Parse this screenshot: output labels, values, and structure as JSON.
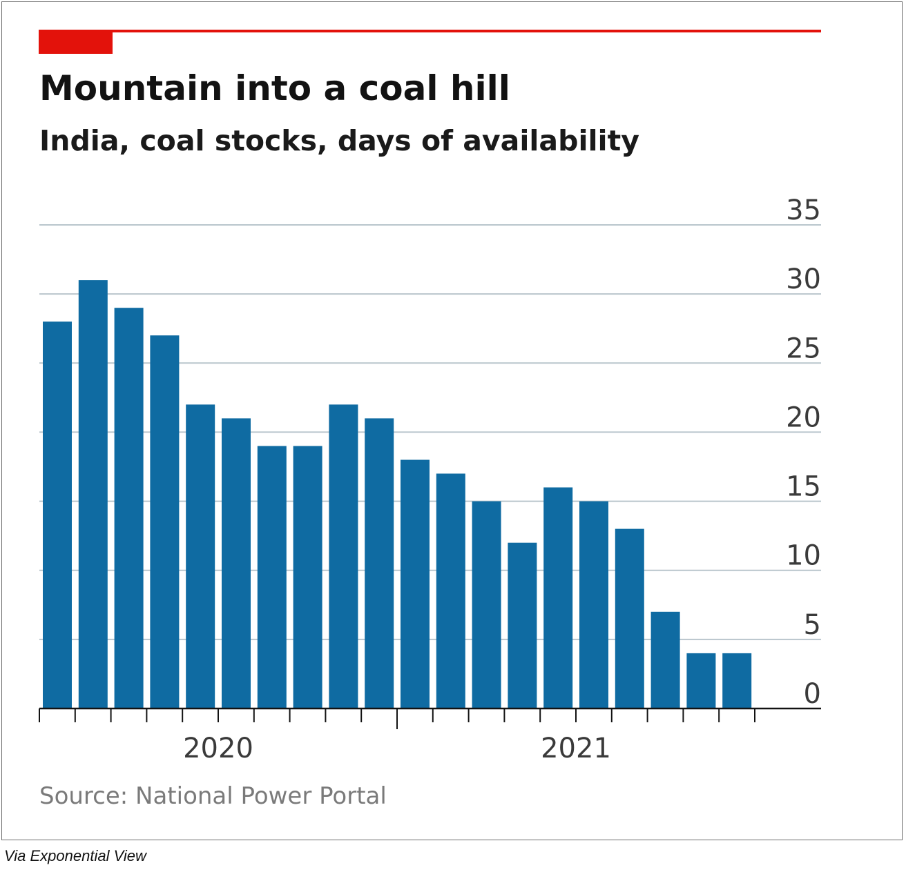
{
  "title": "Mountain into a coal hill",
  "subtitle": "India, coal stocks, days of availability",
  "source": "Source: National Power Portal",
  "credit": "Via Exponential View",
  "colors": {
    "accent": "#e3120b",
    "bar": "#0f6ba2",
    "grid": "#b9c5cc",
    "axis": "#121212",
    "tick_label": "#3a3a3a"
  },
  "chart_data": {
    "type": "bar",
    "title": "Mountain into a coal hill",
    "subtitle": "India, coal stocks, days of availability",
    "values": [
      28,
      31,
      29,
      27,
      22,
      21,
      19,
      19,
      22,
      21,
      18,
      17,
      15,
      12,
      16,
      15,
      13,
      7,
      4,
      4
    ],
    "ylim": [
      0,
      35
    ],
    "yticks": [
      0,
      5,
      10,
      15,
      20,
      25,
      30,
      35
    ],
    "y_axis_side": "right",
    "x_tick_labels": [
      {
        "label": "2020",
        "index": 5
      },
      {
        "label": "2021",
        "index": 15
      }
    ],
    "grid": true,
    "legend": "none"
  }
}
